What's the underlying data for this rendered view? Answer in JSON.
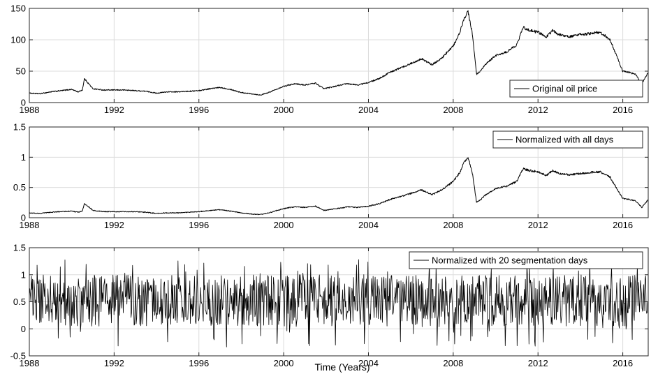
{
  "figure": {
    "xlabel": "Time (Years)"
  },
  "chart_data": [
    {
      "type": "line",
      "xlabel": "",
      "ylabel": "",
      "xlim": [
        1988,
        2017.2
      ],
      "ylim": [
        0,
        150
      ],
      "x_ticks": [
        1988,
        1992,
        1996,
        2000,
        2004,
        2008,
        2012,
        2016
      ],
      "x_tick_labels": [
        "1988",
        "1992",
        "1996",
        "2000",
        "2004",
        "2008",
        "2012",
        "2016"
      ],
      "y_ticks": [
        0,
        50,
        100,
        150
      ],
      "y_tick_labels": [
        "0",
        "50",
        "100",
        "150"
      ],
      "grid": true,
      "legend_position": "bottom-right",
      "series": [
        {
          "name": "Original oil price",
          "color": "#000000",
          "x": [
            1988.0,
            1988.5,
            1989.0,
            1989.5,
            1990.0,
            1990.3,
            1990.5,
            1990.6,
            1990.8,
            1991.0,
            1991.5,
            1992.0,
            1992.5,
            1993.0,
            1993.5,
            1994.0,
            1994.5,
            1995.0,
            1995.5,
            1996.0,
            1996.5,
            1997.0,
            1997.5,
            1998.0,
            1998.5,
            1998.9,
            1999.3,
            1999.7,
            2000.0,
            2000.5,
            2001.0,
            2001.5,
            2001.9,
            2002.3,
            2002.7,
            2003.0,
            2003.5,
            2004.0,
            2004.5,
            2005.0,
            2005.5,
            2006.0,
            2006.5,
            2007.0,
            2007.5,
            2008.0,
            2008.3,
            2008.5,
            2008.7,
            2008.9,
            2009.1,
            2009.3,
            2009.5,
            2010.0,
            2010.5,
            2011.0,
            2011.3,
            2011.6,
            2012.0,
            2012.4,
            2012.7,
            2013.0,
            2013.5,
            2014.0,
            2014.5,
            2014.9,
            2015.1,
            2015.4,
            2015.7,
            2016.0,
            2016.3,
            2016.6,
            2016.9,
            2017.2
          ],
          "y": [
            15,
            14,
            17,
            19,
            21,
            17,
            20,
            38,
            30,
            22,
            20,
            20,
            20,
            19,
            18,
            15,
            17,
            17,
            18,
            19,
            22,
            24,
            21,
            16,
            14,
            12,
            16,
            22,
            26,
            30,
            28,
            31,
            22,
            25,
            28,
            30,
            28,
            32,
            38,
            48,
            55,
            62,
            70,
            60,
            72,
            90,
            110,
            133,
            145,
            110,
            45,
            50,
            60,
            75,
            80,
            92,
            120,
            115,
            112,
            105,
            115,
            108,
            105,
            108,
            110,
            112,
            108,
            100,
            75,
            50,
            48,
            45,
            30,
            48
          ]
        }
      ]
    },
    {
      "type": "line",
      "xlabel": "",
      "ylabel": "",
      "xlim": [
        1988,
        2017.2
      ],
      "ylim": [
        0,
        1.5
      ],
      "x_ticks": [
        1988,
        1992,
        1996,
        2000,
        2004,
        2008,
        2012,
        2016
      ],
      "x_tick_labels": [
        "1988",
        "1992",
        "1996",
        "2000",
        "2004",
        "2008",
        "2012",
        "2016"
      ],
      "y_ticks": [
        0,
        0.5,
        1,
        1.5
      ],
      "y_tick_labels": [
        "0",
        "0.5",
        "1",
        "1.5"
      ],
      "grid": true,
      "legend_position": "top-right",
      "series": [
        {
          "name": "Normalized with all days",
          "color": "#000000",
          "x": [
            1988.0,
            1988.5,
            1989.0,
            1989.5,
            1990.0,
            1990.3,
            1990.5,
            1990.6,
            1990.8,
            1991.0,
            1991.5,
            1992.0,
            1992.5,
            1993.0,
            1993.5,
            1994.0,
            1994.5,
            1995.0,
            1995.5,
            1996.0,
            1996.5,
            1997.0,
            1997.5,
            1998.0,
            1998.5,
            1998.9,
            1999.3,
            1999.7,
            2000.0,
            2000.5,
            2001.0,
            2001.5,
            2001.9,
            2002.3,
            2002.7,
            2003.0,
            2003.5,
            2004.0,
            2004.5,
            2005.0,
            2005.5,
            2006.0,
            2006.5,
            2007.0,
            2007.5,
            2008.0,
            2008.3,
            2008.5,
            2008.7,
            2008.9,
            2009.1,
            2009.3,
            2009.5,
            2010.0,
            2010.5,
            2011.0,
            2011.3,
            2011.6,
            2012.0,
            2012.4,
            2012.7,
            2013.0,
            2013.5,
            2014.0,
            2014.5,
            2014.9,
            2015.1,
            2015.4,
            2015.7,
            2016.0,
            2016.3,
            2016.6,
            2016.9,
            2017.2
          ],
          "y": [
            0.08,
            0.07,
            0.09,
            0.1,
            0.11,
            0.09,
            0.11,
            0.23,
            0.18,
            0.12,
            0.1,
            0.1,
            0.1,
            0.1,
            0.09,
            0.07,
            0.08,
            0.08,
            0.09,
            0.1,
            0.12,
            0.13,
            0.11,
            0.08,
            0.06,
            0.05,
            0.08,
            0.12,
            0.15,
            0.18,
            0.17,
            0.19,
            0.12,
            0.14,
            0.16,
            0.18,
            0.17,
            0.19,
            0.23,
            0.3,
            0.35,
            0.4,
            0.46,
            0.38,
            0.47,
            0.6,
            0.74,
            0.91,
            1.0,
            0.74,
            0.26,
            0.3,
            0.37,
            0.48,
            0.52,
            0.6,
            0.81,
            0.78,
            0.76,
            0.7,
            0.78,
            0.73,
            0.71,
            0.73,
            0.75,
            0.76,
            0.73,
            0.67,
            0.49,
            0.32,
            0.3,
            0.28,
            0.17,
            0.3
          ]
        }
      ]
    },
    {
      "type": "line",
      "xlabel": "Time (Years)",
      "ylabel": "",
      "xlim": [
        1988,
        2017.2
      ],
      "ylim": [
        -0.5,
        1.5
      ],
      "x_ticks": [
        1988,
        1992,
        1996,
        2000,
        2004,
        2008,
        2012,
        2016
      ],
      "x_tick_labels": [
        "1988",
        "1992",
        "1996",
        "2000",
        "2004",
        "2008",
        "2012",
        "2016"
      ],
      "y_ticks": [
        -0.5,
        0,
        0.5,
        1,
        1.5
      ],
      "y_tick_labels": [
        "-0.5",
        "0",
        "0.5",
        "1",
        "1.5"
      ],
      "grid": true,
      "legend_position": "top-right",
      "series": [
        {
          "name": "Normalized with 20 segmentation days",
          "color": "#000000",
          "sample_count": 1200,
          "value_range": [
            -0.35,
            1.3
          ],
          "typical_range": [
            0,
            1
          ]
        }
      ]
    }
  ]
}
